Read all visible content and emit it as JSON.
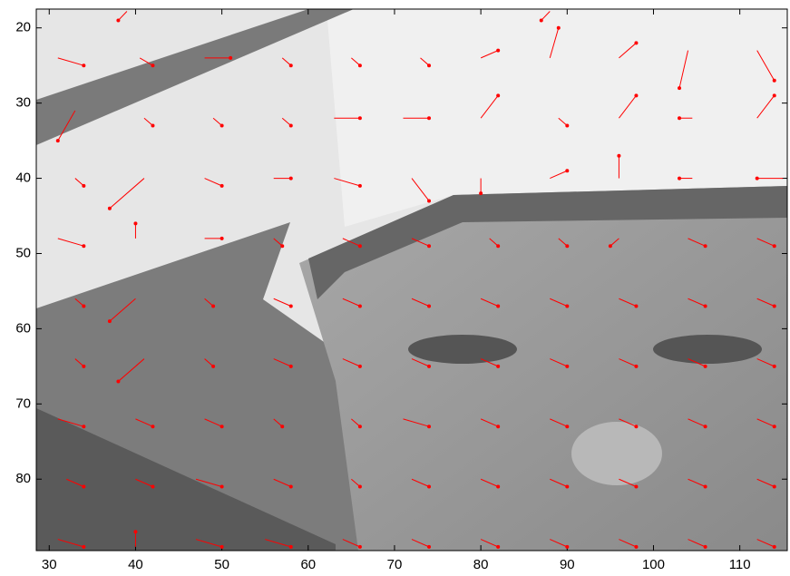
{
  "chart_data": {
    "type": "quiver",
    "color": "#ff0000",
    "xlim": [
      28.5,
      115.5
    ],
    "ylim": [
      17.5,
      89.5
    ],
    "y_reversed": true,
    "xticks": [
      30,
      40,
      50,
      60,
      70,
      80,
      90,
      100,
      110
    ],
    "yticks": [
      20,
      30,
      40,
      50,
      60,
      70,
      80
    ],
    "x": [
      39,
      88,
      31,
      40.5,
      48,
      57,
      65,
      73,
      80,
      88,
      96,
      104,
      112,
      33,
      41,
      49,
      57,
      63,
      71,
      80,
      89,
      96,
      104.5,
      112,
      33,
      41,
      48,
      56,
      63,
      72,
      80,
      88,
      96,
      104.5,
      115,
      31,
      40,
      48,
      56,
      64,
      72,
      81,
      89,
      96,
      104,
      112,
      33,
      40,
      48,
      56,
      64,
      72,
      80,
      88,
      96,
      104,
      112,
      33,
      41,
      48,
      56,
      64,
      72,
      80,
      88,
      96,
      104,
      112,
      31,
      40,
      48,
      56,
      65,
      71,
      80,
      88,
      96,
      104,
      112,
      32,
      40,
      47,
      56,
      65,
      72,
      80,
      88,
      96,
      104,
      112,
      31,
      40,
      47,
      55,
      64,
      72,
      80,
      88,
      96,
      104,
      112
    ],
    "y": [
      17.8,
      17.8,
      24,
      24,
      24,
      24,
      24,
      24,
      24,
      24,
      24,
      23,
      23,
      31,
      32,
      32,
      32,
      32,
      32,
      32,
      32,
      32,
      32,
      32,
      40,
      40,
      40,
      40,
      40,
      40,
      40,
      40,
      40,
      40,
      40,
      48,
      48,
      48,
      48,
      48,
      48,
      48,
      48,
      48,
      48,
      48,
      56,
      56,
      56,
      56,
      56,
      56,
      56,
      56,
      56,
      56,
      56,
      64,
      64,
      64,
      64,
      64,
      64,
      64,
      64,
      64,
      64,
      64,
      72,
      72,
      72,
      72,
      72,
      72,
      72,
      72,
      72,
      72,
      72,
      80,
      80,
      80,
      80,
      80,
      80,
      80,
      80,
      80,
      80,
      80,
      88,
      89,
      88,
      88,
      88,
      88,
      88,
      88,
      88,
      88,
      88
    ],
    "u": [
      -1,
      -1,
      3,
      1.5,
      3,
      1,
      1,
      1,
      2,
      1,
      2,
      -1,
      2,
      -2,
      1,
      1,
      1,
      3,
      3,
      2,
      1,
      2,
      -1.5,
      2,
      1,
      -4,
      2,
      2,
      3,
      2,
      0,
      2,
      0,
      -1.5,
      -3,
      3,
      0,
      2,
      1,
      2,
      2,
      1,
      1,
      -1,
      2,
      2,
      1,
      -3,
      1,
      2,
      2,
      2,
      2,
      2,
      2,
      2,
      2,
      1,
      -3,
      1,
      2,
      2,
      2,
      2,
      2,
      2,
      2,
      2,
      3,
      2,
      2,
      1,
      1,
      3,
      2,
      2,
      2,
      2,
      2,
      2,
      2,
      3,
      2,
      1,
      2,
      2,
      2,
      2,
      2,
      2,
      3,
      0,
      3,
      3,
      2,
      2,
      2,
      2,
      2,
      2,
      2
    ],
    "v": [
      1.2,
      1.2,
      1,
      1,
      0,
      1,
      1,
      1,
      -1,
      -4,
      -2,
      5,
      4,
      4,
      1,
      1,
      1,
      0,
      0,
      -3,
      1,
      -3,
      0,
      -3,
      1,
      4,
      1,
      0,
      1,
      3,
      2,
      -1,
      -3,
      0,
      0,
      1,
      -2,
      0,
      1,
      1,
      1,
      1,
      1,
      1,
      1,
      1,
      1,
      3,
      1,
      1,
      1,
      1,
      1,
      1,
      1,
      1,
      1,
      1,
      3,
      1,
      1,
      1,
      1,
      1,
      1,
      1,
      1,
      1,
      1,
      1,
      1,
      1,
      1,
      1,
      1,
      1,
      1,
      1,
      1,
      1,
      1,
      1,
      1,
      1,
      1,
      1,
      1,
      1,
      1,
      1,
      1,
      -2,
      1,
      1,
      1,
      1,
      1,
      1,
      1,
      1,
      1
    ]
  }
}
